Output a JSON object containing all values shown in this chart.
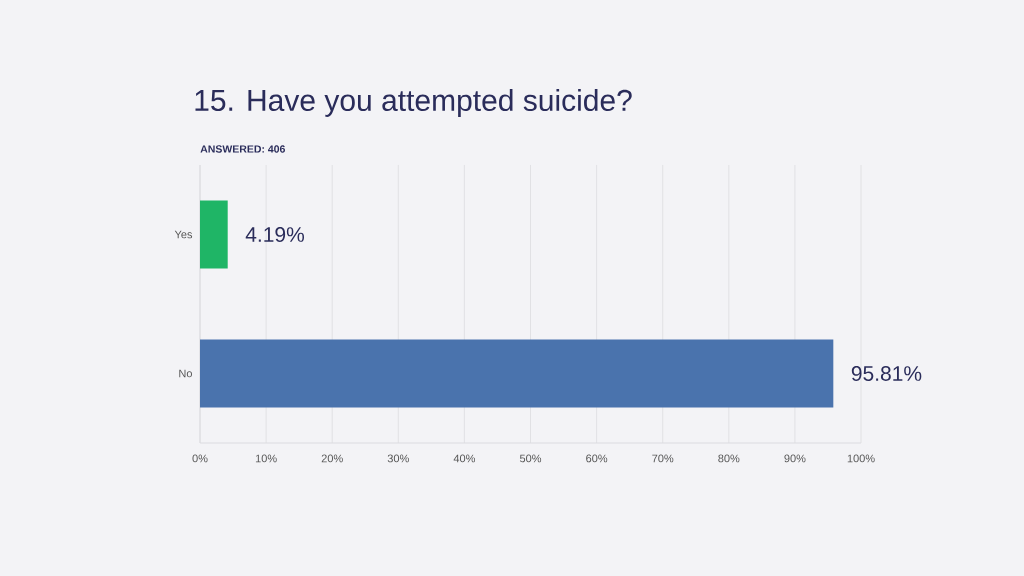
{
  "chart_data": {
    "type": "bar",
    "orientation": "horizontal",
    "title": "15. Have you attempted suicide?",
    "subtitle": "ANSWERED: 406",
    "categories": [
      "Yes",
      "No"
    ],
    "values": [
      4.19,
      95.81
    ],
    "colors": [
      "#1fb566",
      "#4a73ad"
    ],
    "value_labels": [
      "4.19%",
      "95.81%"
    ],
    "xlim": [
      0,
      100
    ],
    "xticks": [
      {
        "value": 0,
        "label": "0%"
      },
      {
        "value": 10,
        "label": "10%"
      },
      {
        "value": 20,
        "label": "20%"
      },
      {
        "value": 30,
        "label": "30%"
      },
      {
        "value": 40,
        "label": "40%"
      },
      {
        "value": 50,
        "label": "50%"
      },
      {
        "value": 60,
        "label": "60%"
      },
      {
        "value": 70,
        "label": "70%"
      },
      {
        "value": 80,
        "label": "80%"
      },
      {
        "value": 90,
        "label": "90%"
      },
      {
        "value": 100,
        "label": "100%"
      }
    ],
    "grid": "x"
  }
}
